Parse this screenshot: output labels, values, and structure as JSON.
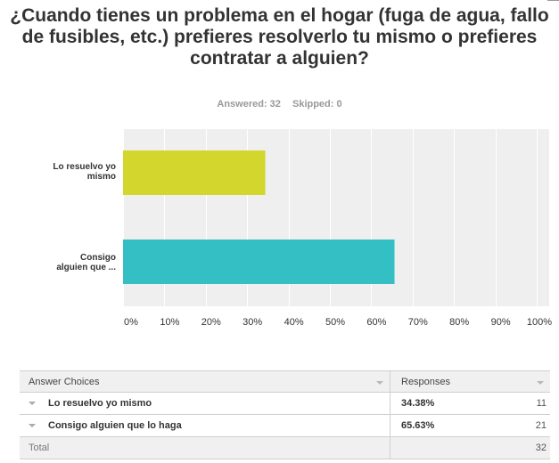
{
  "question": {
    "title": "¿Cuando tienes un problema en el hogar (fuga de agua, fallo de fusibles, etc.) prefieres resolverlo tu mismo o prefieres contratar a alguien?",
    "answered_label": "Answered: 32",
    "skipped_label": "Skipped: 0"
  },
  "chart_data": {
    "type": "bar",
    "orientation": "horizontal",
    "title": "¿Cuando tienes un problema en el hogar (fuga de agua, fallo de fusibles, etc.) prefieres resolverlo tu mismo o prefieres contratar a alguien?",
    "categories": [
      "Lo resuelvo yo mismo",
      "Consigo alguien que ..."
    ],
    "values": [
      34.38,
      65.63
    ],
    "colors": [
      "#d3d62c",
      "#33bfc3"
    ],
    "xlim": [
      0,
      100
    ],
    "ticks": [
      "0%",
      "10%",
      "20%",
      "30%",
      "40%",
      "50%",
      "60%",
      "70%",
      "80%",
      "90%",
      "100%"
    ],
    "grid": true,
    "legend": "none"
  },
  "table": {
    "headers": {
      "choices": "Answer Choices",
      "responses": "Responses"
    },
    "rows": [
      {
        "choice": "Lo resuelvo yo mismo",
        "percent": "34.38%",
        "count": "11"
      },
      {
        "choice": "Consigo alguien que lo haga",
        "percent": "65.63%",
        "count": "21"
      }
    ],
    "total": {
      "label": "Total",
      "count": "32"
    }
  }
}
